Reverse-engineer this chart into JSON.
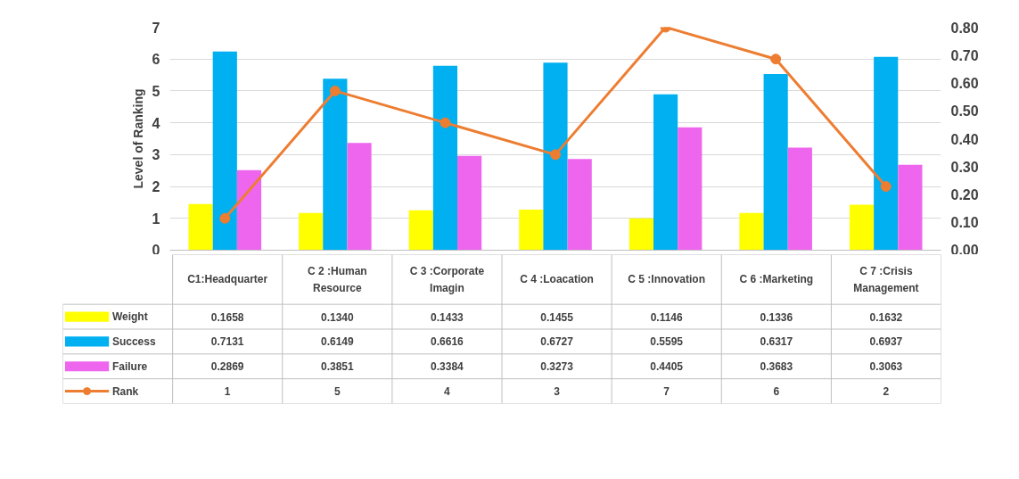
{
  "chart_data": {
    "type": "bar",
    "ylabel": "Level of Ranking",
    "categories": [
      "C1:Headquarter",
      "C 2 :Human Resource",
      "C 3 :Corporate Imagin",
      "C 4 :Loacation",
      "C 5 :Innovation",
      "C 6 :Marketing",
      "C 7 :Crisis Management"
    ],
    "series": [
      {
        "name": "Weight",
        "axis": "y2",
        "color": "#ffff00",
        "values": [
          0.1658,
          0.134,
          0.1433,
          0.1455,
          0.1146,
          0.1336,
          0.1632
        ],
        "value_labels": [
          "0.1658",
          "0.1340",
          "0.1433",
          "0.1455",
          "0.1146",
          "0.1336",
          "0.1632"
        ]
      },
      {
        "name": "Success",
        "axis": "y2",
        "color": "#00b0f0",
        "values": [
          0.7131,
          0.6149,
          0.6616,
          0.6727,
          0.5595,
          0.6317,
          0.6937
        ],
        "value_labels": [
          "0.7131",
          "0.6149",
          "0.6616",
          "0.6727",
          "0.5595",
          "0.6317",
          "0.6937"
        ]
      },
      {
        "name": "Failure",
        "axis": "y2",
        "color": "#ef66ee",
        "values": [
          0.2869,
          0.3851,
          0.3384,
          0.3273,
          0.4405,
          0.3683,
          0.3063
        ],
        "value_labels": [
          "0.2869",
          "0.3851",
          "0.3384",
          "0.3273",
          "0.4405",
          "0.3683",
          "0.3063"
        ]
      },
      {
        "name": "Rank",
        "type": "line",
        "axis": "y",
        "color": "#ed7d31",
        "values": [
          1,
          5,
          4,
          3,
          7,
          6,
          2
        ],
        "value_labels": [
          "1",
          "5",
          "4",
          "3",
          "7",
          "6",
          "2"
        ]
      }
    ],
    "ylim": [
      0,
      7
    ],
    "yticks": [
      0,
      1,
      2,
      3,
      4,
      5,
      6,
      7
    ],
    "y2lim": [
      0,
      0.8
    ],
    "y2ticks": [
      {
        "value": 0,
        "label": "0.00"
      },
      {
        "value": 0.1,
        "label": "0.10"
      },
      {
        "value": 0.2,
        "label": "0.20"
      },
      {
        "value": 0.3,
        "label": "0.30"
      },
      {
        "value": 0.4,
        "label": "0.40"
      },
      {
        "value": 0.5,
        "label": "0.50"
      },
      {
        "value": 0.6,
        "label": "0.60"
      },
      {
        "value": 0.7,
        "label": "0.70"
      },
      {
        "value": 0.8,
        "label": "0.80"
      }
    ],
    "grid": "y",
    "legend": "bottom",
    "marker": "circle",
    "line_style": "solid"
  }
}
